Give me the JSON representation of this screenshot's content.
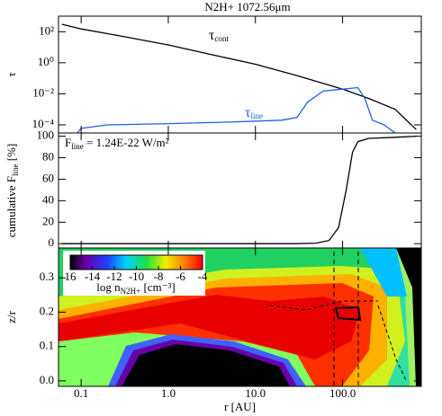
{
  "chart_data": [
    {
      "type": "line",
      "title": "N2H+ 1072.56μm",
      "ylog": true,
      "xlog": true,
      "xlim": [
        0.055,
        800
      ],
      "ylim": [
        3e-05,
        1000
      ],
      "ylabel": {
        "text": "τ"
      },
      "yticks": [
        {
          "value": 100,
          "label": "10²"
        },
        {
          "value": 1,
          "label": "10⁰"
        },
        {
          "value": 0.01,
          "label": "10⁻²"
        },
        {
          "value": 0.0001,
          "label": "10⁻⁴"
        }
      ],
      "series": [
        {
          "name": "τ",
          "sub": "cont",
          "color": "#000000",
          "x": [
            0.06,
            0.1,
            0.3,
            1,
            3,
            10,
            30,
            100,
            200,
            400,
            700
          ],
          "values": [
            300,
            150,
            50,
            14,
            3.5,
            0.8,
            0.15,
            0.02,
            0.005,
            0.001,
            5e-05
          ]
        },
        {
          "name": "τ",
          "sub": "line",
          "color": "#2060e0",
          "x": [
            0.09,
            0.1,
            0.2,
            1,
            5,
            20,
            30,
            40,
            60,
            100,
            150,
            180,
            220,
            300,
            400
          ],
          "values": [
            3e-05,
            6e-05,
            0.0001,
            0.00012,
            0.00015,
            0.0002,
            0.0003,
            0.003,
            0.015,
            0.02,
            0.025,
            0.005,
            0.0002,
            0.0001,
            3e-05
          ]
        }
      ]
    },
    {
      "type": "line",
      "xlog": true,
      "xlim": [
        0.055,
        800
      ],
      "ylim": [
        -4,
        103
      ],
      "ylabel": {
        "text": "cumulative F",
        "sub": "line",
        "after": " [%]"
      },
      "yticks": [
        0,
        20,
        40,
        60,
        80,
        100
      ],
      "annotation": {
        "text": "F",
        "sub": "line",
        "after": " = 1.24E-22 W/m²"
      },
      "series": [
        {
          "color": "#000000",
          "x": [
            0.06,
            30,
            50,
            70,
            90,
            110,
            130,
            150,
            200,
            400,
            700
          ],
          "values": [
            0,
            0,
            0.5,
            3,
            15,
            50,
            85,
            95,
            98,
            99,
            100
          ]
        }
      ]
    },
    {
      "type": "image",
      "xlog": true,
      "xlim": [
        0.055,
        800
      ],
      "ylim": [
        -0.016,
        0.387
      ],
      "ylabel": {
        "text": "z/r"
      },
      "xlabel": {
        "text": "r [AU]"
      },
      "yticks": [
        {
          "value": 0,
          "label": "0.0"
        },
        0.1,
        0.2,
        0.3
      ],
      "xticks": [
        0.1,
        {
          "value": 1,
          "label": "1.0"
        },
        {
          "value": 10,
          "label": "10.0"
        },
        {
          "value": 100,
          "label": "100.0"
        }
      ],
      "colorbar": {
        "lim": [
          -16,
          -4
        ],
        "ticks": [
          {
            "value": -16,
            "label": "16"
          },
          -14,
          -12,
          -10,
          -8,
          -6,
          -4
        ],
        "label": {
          "text": "log n",
          "sub": "N2H+",
          "after": " [cm⁻³]"
        }
      }
    }
  ]
}
